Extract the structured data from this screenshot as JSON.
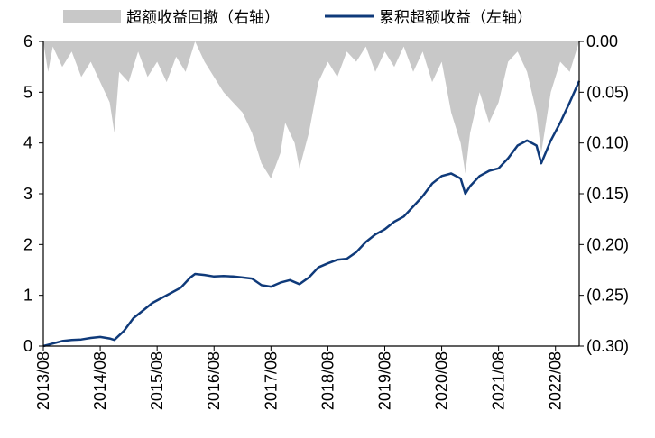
{
  "chart_data": {
    "type": "line+area",
    "legend": [
      {
        "name": "超额收益回撤（右轴）",
        "color": "#c8c8c8",
        "kind": "area"
      },
      {
        "name": "累积超额收益（左轴）",
        "color": "#0f3a7a",
        "kind": "line"
      }
    ],
    "x_tick_labels": [
      "2013/08",
      "2014/08",
      "2015/08",
      "2016/08",
      "2017/08",
      "2018/08",
      "2019/08",
      "2020/08",
      "2021/08",
      "2022/08"
    ],
    "x_range": [
      "2013-08",
      "2023-01"
    ],
    "y_left": {
      "ticks": [
        "0",
        "1",
        "2",
        "3",
        "4",
        "5",
        "6"
      ],
      "min": 0,
      "max": 6
    },
    "y_right": {
      "ticks": [
        "0.00",
        "(0.05)",
        "(0.10)",
        "(0.15)",
        "(0.20)",
        "(0.25)",
        "(0.30)"
      ],
      "min": -0.3,
      "max": 0.0
    },
    "series": [
      {
        "name": "累积超额收益（左轴）",
        "axis": "left",
        "points": [
          [
            "2013-08",
            0.0
          ],
          [
            "2013-10",
            0.05
          ],
          [
            "2013-12",
            0.1
          ],
          [
            "2014-02",
            0.12
          ],
          [
            "2014-04",
            0.13
          ],
          [
            "2014-06",
            0.16
          ],
          [
            "2014-08",
            0.18
          ],
          [
            "2014-10",
            0.15
          ],
          [
            "2014-11",
            0.12
          ],
          [
            "2015-01",
            0.3
          ],
          [
            "2015-03",
            0.55
          ],
          [
            "2015-05",
            0.7
          ],
          [
            "2015-07",
            0.85
          ],
          [
            "2015-09",
            0.95
          ],
          [
            "2015-11",
            1.05
          ],
          [
            "2016-01",
            1.15
          ],
          [
            "2016-03",
            1.35
          ],
          [
            "2016-04",
            1.42
          ],
          [
            "2016-06",
            1.4
          ],
          [
            "2016-08",
            1.37
          ],
          [
            "2016-10",
            1.38
          ],
          [
            "2016-12",
            1.37
          ],
          [
            "2017-02",
            1.35
          ],
          [
            "2017-04",
            1.33
          ],
          [
            "2017-06",
            1.2
          ],
          [
            "2017-08",
            1.17
          ],
          [
            "2017-10",
            1.25
          ],
          [
            "2017-12",
            1.3
          ],
          [
            "2018-02",
            1.22
          ],
          [
            "2018-04",
            1.35
          ],
          [
            "2018-06",
            1.55
          ],
          [
            "2018-08",
            1.63
          ],
          [
            "2018-10",
            1.7
          ],
          [
            "2018-12",
            1.72
          ],
          [
            "2019-02",
            1.85
          ],
          [
            "2019-04",
            2.05
          ],
          [
            "2019-06",
            2.2
          ],
          [
            "2019-08",
            2.3
          ],
          [
            "2019-10",
            2.45
          ],
          [
            "2019-12",
            2.55
          ],
          [
            "2020-02",
            2.75
          ],
          [
            "2020-04",
            2.95
          ],
          [
            "2020-06",
            3.2
          ],
          [
            "2020-08",
            3.35
          ],
          [
            "2020-10",
            3.4
          ],
          [
            "2020-12",
            3.3
          ],
          [
            "2021-01",
            3.0
          ],
          [
            "2021-02",
            3.15
          ],
          [
            "2021-04",
            3.35
          ],
          [
            "2021-06",
            3.45
          ],
          [
            "2021-08",
            3.5
          ],
          [
            "2021-10",
            3.7
          ],
          [
            "2021-12",
            3.95
          ],
          [
            "2022-02",
            4.05
          ],
          [
            "2022-04",
            3.95
          ],
          [
            "2022-05",
            3.6
          ],
          [
            "2022-07",
            4.05
          ],
          [
            "2022-09",
            4.4
          ],
          [
            "2022-11",
            4.8
          ],
          [
            "2023-01",
            5.22
          ]
        ]
      },
      {
        "name": "超额收益回撤（右轴）",
        "axis": "right",
        "points": [
          [
            "2013-08",
            0.0
          ],
          [
            "2013-09",
            -0.03
          ],
          [
            "2013-10",
            -0.005
          ],
          [
            "2013-12",
            -0.025
          ],
          [
            "2014-02",
            -0.01
          ],
          [
            "2014-04",
            -0.035
          ],
          [
            "2014-06",
            -0.02
          ],
          [
            "2014-08",
            -0.04
          ],
          [
            "2014-10",
            -0.06
          ],
          [
            "2014-11",
            -0.09
          ],
          [
            "2014-12",
            -0.03
          ],
          [
            "2015-02",
            -0.04
          ],
          [
            "2015-04",
            -0.01
          ],
          [
            "2015-06",
            -0.035
          ],
          [
            "2015-08",
            -0.02
          ],
          [
            "2015-10",
            -0.04
          ],
          [
            "2015-12",
            -0.015
          ],
          [
            "2016-02",
            -0.03
          ],
          [
            "2016-04",
            0.0
          ],
          [
            "2016-06",
            -0.02
          ],
          [
            "2016-08",
            -0.035
          ],
          [
            "2016-10",
            -0.05
          ],
          [
            "2016-12",
            -0.06
          ],
          [
            "2017-02",
            -0.07
          ],
          [
            "2017-04",
            -0.09
          ],
          [
            "2017-06",
            -0.12
          ],
          [
            "2017-08",
            -0.135
          ],
          [
            "2017-10",
            -0.11
          ],
          [
            "2017-11",
            -0.08
          ],
          [
            "2018-01",
            -0.1
          ],
          [
            "2018-02",
            -0.125
          ],
          [
            "2018-04",
            -0.09
          ],
          [
            "2018-06",
            -0.04
          ],
          [
            "2018-08",
            -0.02
          ],
          [
            "2018-10",
            -0.035
          ],
          [
            "2018-12",
            -0.01
          ],
          [
            "2019-02",
            -0.02
          ],
          [
            "2019-04",
            -0.005
          ],
          [
            "2019-06",
            -0.03
          ],
          [
            "2019-08",
            -0.01
          ],
          [
            "2019-10",
            -0.025
          ],
          [
            "2019-12",
            -0.005
          ],
          [
            "2020-02",
            -0.03
          ],
          [
            "2020-04",
            -0.01
          ],
          [
            "2020-06",
            -0.04
          ],
          [
            "2020-08",
            -0.02
          ],
          [
            "2020-10",
            -0.07
          ],
          [
            "2020-12",
            -0.1
          ],
          [
            "2021-01",
            -0.13
          ],
          [
            "2021-02",
            -0.09
          ],
          [
            "2021-04",
            -0.05
          ],
          [
            "2021-06",
            -0.08
          ],
          [
            "2021-08",
            -0.06
          ],
          [
            "2021-10",
            -0.02
          ],
          [
            "2021-12",
            -0.01
          ],
          [
            "2022-02",
            -0.03
          ],
          [
            "2022-04",
            -0.07
          ],
          [
            "2022-05",
            -0.11
          ],
          [
            "2022-07",
            -0.05
          ],
          [
            "2022-09",
            -0.02
          ],
          [
            "2022-11",
            -0.03
          ],
          [
            "2023-01",
            0.0
          ]
        ]
      }
    ]
  }
}
